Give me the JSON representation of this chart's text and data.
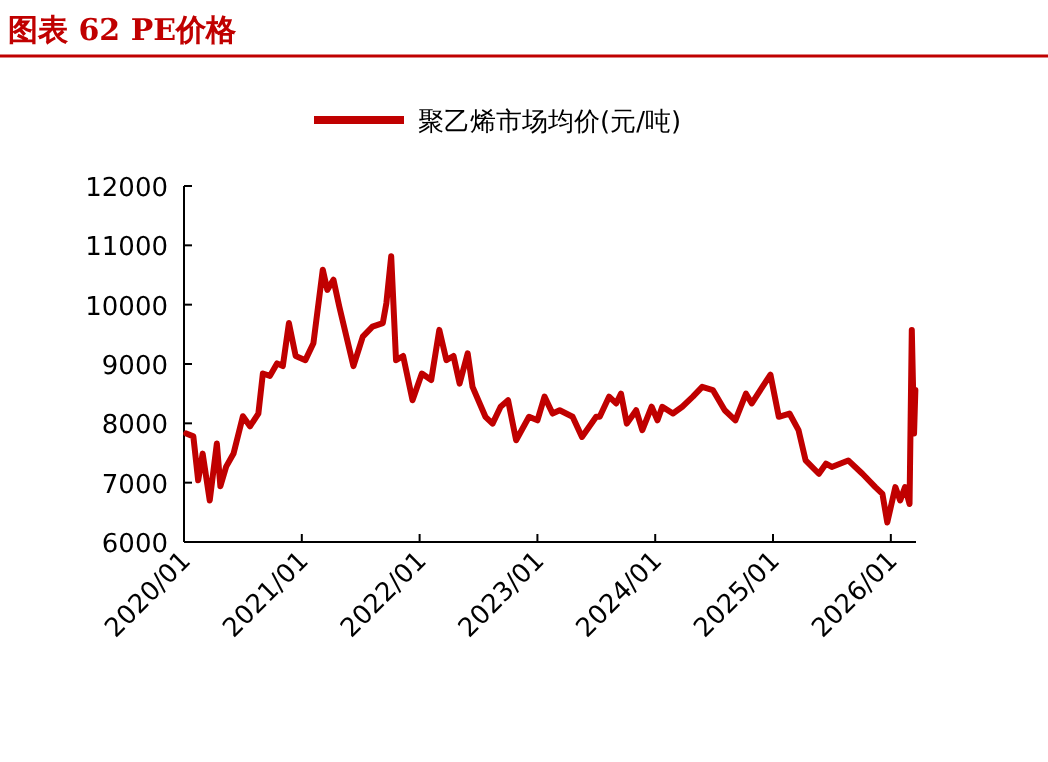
{
  "chart_data": {
    "type": "line",
    "title": "图表  62 PE价格",
    "legend": "top",
    "grid": false,
    "marker": "none",
    "line_style": "solid",
    "xlim": [
      "2020-01-01",
      "2026-03-20"
    ],
    "xticks": [
      {
        "value": "2020-01-01",
        "label": "2020/01"
      },
      {
        "value": "2021-01-01",
        "label": "2021/01"
      },
      {
        "value": "2022-01-01",
        "label": "2022/01"
      },
      {
        "value": "2023-01-01",
        "label": "2023/01"
      },
      {
        "value": "2024-01-01",
        "label": "2024/01"
      },
      {
        "value": "2025-01-01",
        "label": "2025/01"
      },
      {
        "value": "2026-01-01",
        "label": "2026/01"
      }
    ],
    "ylim": [
      6000,
      12000
    ],
    "yticks": [
      6000,
      7000,
      8000,
      9000,
      10000,
      11000,
      12000
    ],
    "x": [
      "2020-01-08",
      "2020-01-30",
      "2020-02-14",
      "2020-02-28",
      "2020-03-21",
      "2020-04-12",
      "2020-04-23",
      "2020-05-11",
      "2020-06-03",
      "2020-07-02",
      "2020-07-24",
      "2020-08-19",
      "2020-09-02",
      "2020-09-24",
      "2020-10-16",
      "2020-11-03",
      "2020-11-22",
      "2020-12-13",
      "2021-01-12",
      "2021-02-06",
      "2021-03-07",
      "2021-03-21",
      "2021-04-09",
      "2021-04-27",
      "2021-06-10",
      "2021-07-09",
      "2021-08-08",
      "2021-09-09",
      "2021-09-20",
      "2021-10-05",
      "2021-10-20",
      "2021-11-11",
      "2021-12-10",
      "2022-01-08",
      "2022-02-06",
      "2022-03-03",
      "2022-03-25",
      "2022-04-16",
      "2022-05-05",
      "2022-05-30",
      "2022-06-14",
      "2022-07-24",
      "2022-08-15",
      "2022-09-09",
      "2022-10-02",
      "2022-10-27",
      "2022-12-06",
      "2023-01-01",
      "2023-01-23",
      "2023-02-17",
      "2023-03-11",
      "2023-04-20",
      "2023-05-19",
      "2023-07-02",
      "2023-07-13",
      "2023-08-11",
      "2023-09-02",
      "2023-09-17",
      "2023-10-05",
      "2023-11-03",
      "2023-11-22",
      "2023-12-21",
      "2024-01-08",
      "2024-01-23",
      "2024-02-25",
      "2024-03-25",
      "2024-04-27",
      "2024-05-26",
      "2024-06-28",
      "2024-08-04",
      "2024-09-06",
      "2024-10-09",
      "2024-10-27",
      "2024-11-29",
      "2024-12-24",
      "2025-01-19",
      "2025-02-21",
      "2025-03-21",
      "2025-04-12",
      "2025-05-23",
      "2025-06-14",
      "2025-07-02",
      "2025-08-22",
      "2025-10-05",
      "2025-11-14",
      "2025-12-06",
      "2025-12-21",
      "2026-01-15",
      "2026-01-30",
      "2026-02-14",
      "2026-02-28",
      "2026-03-07",
      "2026-03-14",
      "2026-03-18"
    ],
    "series": [
      {
        "name": "聚乙烯市场均价(元/吨)",
        "color": "#c00000",
        "values": [
          7830,
          7780,
          7040,
          7490,
          6700,
          7660,
          6940,
          7270,
          7490,
          8120,
          7950,
          8165,
          8840,
          8800,
          9010,
          8965,
          9690,
          9135,
          9065,
          9350,
          10590,
          10250,
          10420,
          9970,
          8965,
          9460,
          9630,
          9690,
          10025,
          10815,
          9065,
          9135,
          8390,
          8840,
          8730,
          9575,
          9065,
          9135,
          8670,
          9180,
          8615,
          8110,
          7995,
          8280,
          8390,
          7715,
          8110,
          8050,
          8450,
          8165,
          8220,
          8110,
          7770,
          8110,
          8110,
          8450,
          8335,
          8500,
          7995,
          8220,
          7885,
          8280,
          8050,
          8280,
          8165,
          8280,
          8450,
          8615,
          8560,
          8220,
          8050,
          8500,
          8335,
          8615,
          8820,
          8110,
          8165,
          7885,
          7375,
          7150,
          7320,
          7265,
          7375,
          7150,
          6925,
          6810,
          6330,
          6925,
          6700,
          6925,
          6640,
          9575,
          7830,
          8560
        ]
      }
    ]
  }
}
